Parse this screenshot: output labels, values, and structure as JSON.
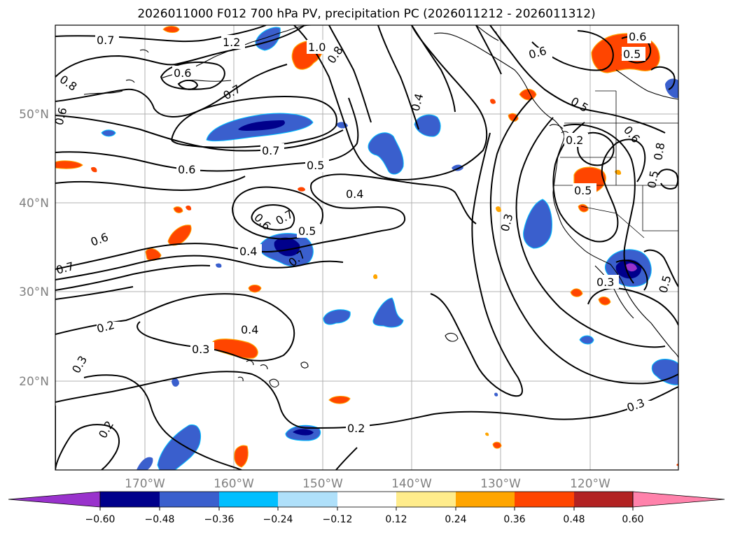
{
  "title": "2026011000 F012 700 hPa PV, precipitation PC (2026011212 - 2026011312)",
  "lon_ticks": [
    "170°W",
    "160°W",
    "150°W",
    "140°W",
    "130°W",
    "120°W"
  ],
  "lat_ticks": [
    "50°N",
    "40°N",
    "30°N",
    "20°N"
  ],
  "colorbar": {
    "colors": [
      "#9932cc",
      "#00008b",
      "#3a5fcd",
      "#00bfff",
      "#afe0fa",
      "#ffffff",
      "#ffec8b",
      "#ffa500",
      "#ff4500",
      "#b22222",
      "#ff82ab"
    ],
    "labels": [
      "−0.60",
      "−0.48",
      "−0.36",
      "−0.24",
      "−0.12",
      "0.12",
      "0.24",
      "0.36",
      "0.48",
      "0.60"
    ]
  },
  "contour_labels": [
    {
      "id": "c1",
      "text": "0.7"
    },
    {
      "id": "c2",
      "text": "1.2"
    },
    {
      "id": "c3",
      "text": "1.0"
    },
    {
      "id": "c4",
      "text": "0.8"
    },
    {
      "id": "c5",
      "text": "0.6"
    },
    {
      "id": "c6",
      "text": "0.8"
    },
    {
      "id": "c7",
      "text": "0.7"
    },
    {
      "id": "c8",
      "text": "0.6"
    },
    {
      "id": "c9",
      "text": "0.7"
    },
    {
      "id": "c10",
      "text": "0.6"
    },
    {
      "id": "c11",
      "text": "0.5"
    },
    {
      "id": "c12",
      "text": "0.4"
    },
    {
      "id": "c13",
      "text": "0.6"
    },
    {
      "id": "c14",
      "text": "0.7"
    },
    {
      "id": "c15",
      "text": "0.5"
    },
    {
      "id": "c16",
      "text": "0.6"
    },
    {
      "id": "c17",
      "text": "0.4"
    },
    {
      "id": "c18",
      "text": "0.7"
    },
    {
      "id": "c19",
      "text": "0.7"
    },
    {
      "id": "c20",
      "text": "0.2"
    },
    {
      "id": "c21",
      "text": "0.4"
    },
    {
      "id": "c22",
      "text": "0.3"
    },
    {
      "id": "c23",
      "text": "0.3"
    },
    {
      "id": "c24",
      "text": "0.2"
    },
    {
      "id": "c25",
      "text": "0.2"
    },
    {
      "id": "c26",
      "text": "0.4"
    },
    {
      "id": "c27",
      "text": "0.3"
    },
    {
      "id": "c28",
      "text": "0.6"
    },
    {
      "id": "c29",
      "text": "0.5"
    },
    {
      "id": "c30",
      "text": "0.6"
    },
    {
      "id": "c31",
      "text": "0.5"
    },
    {
      "id": "c32",
      "text": "0.2"
    },
    {
      "id": "c33",
      "text": "0.6"
    },
    {
      "id": "c34",
      "text": "0.8"
    },
    {
      "id": "c35",
      "text": "0.5"
    },
    {
      "id": "c36",
      "text": "0.3"
    },
    {
      "id": "c37",
      "text": "0.5"
    },
    {
      "id": "c38",
      "text": "0.3"
    },
    {
      "id": "c39",
      "text": "0.5"
    }
  ]
}
